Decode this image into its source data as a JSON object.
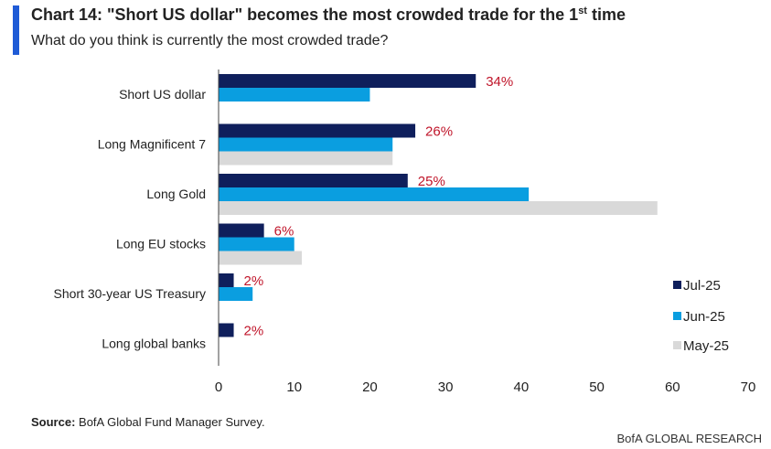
{
  "header": {
    "title_main": "Chart 14: \"Short US dollar\" becomes the most crowded trade for the 1",
    "title_sup": "st",
    "title_end": " time",
    "subtitle": "What do you think is currently the most crowded trade?"
  },
  "footer": {
    "source_label": "Source:",
    "source_text": " BofA Global Fund Manager Survey.",
    "brand": "BofA GLOBAL RESEARCH"
  },
  "colors": {
    "accent": "#1f5bd6",
    "label_red": "#c0152a"
  },
  "chart_data": {
    "type": "bar",
    "orientation": "horizontal",
    "categories": [
      "Short US dollar",
      "Long Magnificent 7",
      "Long Gold",
      "Long EU stocks",
      "Short 30-year US Treasury",
      "Long global banks"
    ],
    "series": [
      {
        "name": "Jul-25",
        "color": "#0f1f5c",
        "values": [
          34,
          26,
          25,
          6,
          2,
          2
        ],
        "labels": [
          "34%",
          "26%",
          "25%",
          "6%",
          "2%",
          "2%"
        ]
      },
      {
        "name": "Jun-25",
        "color": "#0a9ee0",
        "values": [
          20,
          23,
          41,
          10,
          4.5,
          null
        ]
      },
      {
        "name": "May-25",
        "color": "#d9d9d9",
        "values": [
          null,
          23,
          58,
          11,
          null,
          null
        ]
      }
    ],
    "xlim": [
      0,
      70
    ],
    "xticks": [
      "0",
      "10",
      "20",
      "30",
      "40",
      "50",
      "60",
      "70"
    ],
    "legend_position": "bottom-right",
    "grid": false
  }
}
